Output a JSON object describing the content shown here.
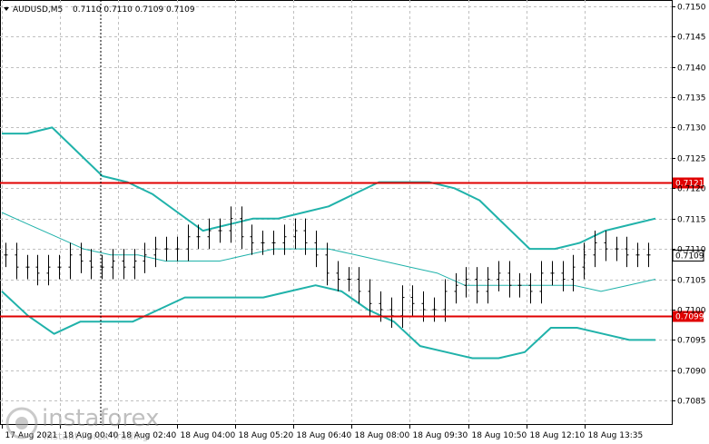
{
  "header": {
    "symbol_label": "AUDUSD,M5",
    "ohlc_label": "0.7110 0.7110 0.7109 0.7109"
  },
  "watermark": {
    "brand": "instaforex",
    "tagline": "Instant Forex Trading"
  },
  "colors": {
    "background": "#ffffff",
    "grid": "#c0c0c0",
    "candle": "#000000",
    "bollinger_band": "#20b2aa",
    "support_resistance": "#e00000",
    "price_badge_bg": "#ffffff",
    "price_badge_fg": "#000000"
  },
  "chart_data": {
    "type": "line",
    "instrument": "AUDUSD",
    "timeframe": "M5",
    "grid": true,
    "y_range": [
      0.7081,
      0.7151
    ],
    "y_ticks": [
      "0.7150",
      "0.7145",
      "0.7140",
      "0.7135",
      "0.7130",
      "0.7125",
      "0.7120",
      "0.7115",
      "0.7110",
      "0.7105",
      "0.7100",
      "0.7095",
      "0.7090",
      "0.7085"
    ],
    "x_ticks": [
      "17 Aug 2021",
      "18 Aug 00:40",
      "18 Aug 02:40",
      "18 Aug 04:00",
      "18 Aug 05:20",
      "18 Aug 06:40",
      "18 Aug 08:00",
      "18 Aug 09:30",
      "18 Aug 10:50",
      "18 Aug 12:10",
      "18 Aug 13:35"
    ],
    "horizontal_levels": [
      {
        "value": 0.7121,
        "label": "0.7121"
      },
      {
        "value": 0.7099,
        "label": "0.7099"
      }
    ],
    "current_price": {
      "value": 0.7109,
      "label": "0.7109"
    },
    "bars_approx": [
      0.7109,
      0.7107,
      0.7107,
      0.7106,
      0.7107,
      0.7107,
      0.7109,
      0.7108,
      0.7107,
      0.7107,
      0.7108,
      0.7107,
      0.7108,
      0.7109,
      0.711,
      0.711,
      0.711,
      0.7112,
      0.7112,
      0.7113,
      0.7113,
      0.7115,
      0.7112,
      0.7111,
      0.7111,
      0.7111,
      0.7112,
      0.7113,
      0.7111,
      0.7109,
      0.7106,
      0.7105,
      0.7105,
      0.7103,
      0.7101,
      0.71,
      0.7099,
      0.7102,
      0.7101,
      0.71,
      0.71,
      0.7103,
      0.7104,
      0.7105,
      0.7103,
      0.7105,
      0.7106,
      0.7104,
      0.7104,
      0.7103,
      0.7106,
      0.7106,
      0.7105,
      0.7107,
      0.7109,
      0.7111,
      0.711,
      0.711,
      0.7109,
      0.7109,
      0.7109
    ],
    "series": [
      {
        "values": [
          0.7129,
          0.7129,
          0.713,
          0.7126,
          0.7122,
          0.7121,
          0.7119,
          0.7116,
          0.7113,
          0.7114,
          0.7115,
          0.7115,
          0.7116,
          0.7117,
          0.7119,
          0.7121,
          0.7121,
          0.7121,
          0.712,
          0.7118,
          0.7114,
          0.711,
          0.711,
          0.7111,
          0.7113,
          0.7114,
          0.7115
        ]
      },
      {
        "values": [
          0.7116,
          0.7114,
          0.7112,
          0.711,
          0.7109,
          0.7109,
          0.7108,
          0.7108,
          0.7108,
          0.7109,
          0.711,
          0.711,
          0.711,
          0.7109,
          0.7108,
          0.7107,
          0.7106,
          0.7104,
          0.7104,
          0.7104,
          0.7104,
          0.7104,
          0.7103,
          0.7104,
          0.7105
        ]
      },
      {
        "values": [
          0.7103,
          0.7099,
          0.7096,
          0.7098,
          0.7098,
          0.7098,
          0.71,
          0.7102,
          0.7102,
          0.7102,
          0.7102,
          0.7103,
          0.7104,
          0.7103,
          0.71,
          0.7098,
          0.7094,
          0.7093,
          0.7092,
          0.7092,
          0.7093,
          0.7097,
          0.7097,
          0.7096,
          0.7095,
          0.7095
        ]
      }
    ]
  }
}
